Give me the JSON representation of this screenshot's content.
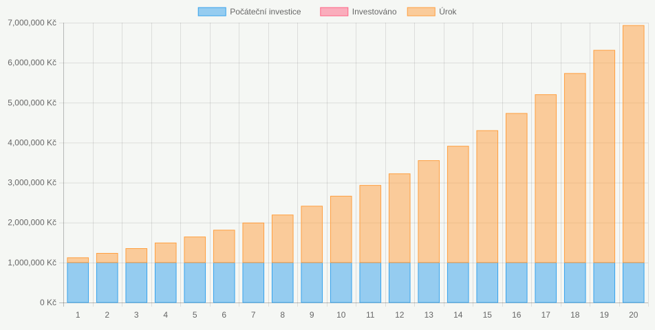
{
  "chart_data": {
    "type": "bar",
    "stacked": true,
    "categories": [
      "1",
      "2",
      "3",
      "4",
      "5",
      "6",
      "7",
      "8",
      "9",
      "10",
      "11",
      "12",
      "13",
      "14",
      "15",
      "16",
      "17",
      "18",
      "19",
      "20"
    ],
    "series": [
      {
        "name": "Počáteční investice",
        "color": "#36a2eb",
        "values": [
          1000000,
          1000000,
          1000000,
          1000000,
          1000000,
          1000000,
          1000000,
          1000000,
          1000000,
          1000000,
          1000000,
          1000000,
          1000000,
          1000000,
          1000000,
          1000000,
          1000000,
          1000000,
          1000000,
          1000000
        ]
      },
      {
        "name": "Investováno",
        "color": "#ff6384",
        "values": [
          0,
          0,
          0,
          0,
          0,
          0,
          0,
          0,
          0,
          0,
          0,
          0,
          0,
          0,
          0,
          0,
          0,
          0,
          0,
          0
        ]
      },
      {
        "name": "Úrok",
        "color": "#ff9f40",
        "values": [
          120000,
          230000,
          350000,
          490000,
          640000,
          810000,
          990000,
          1190000,
          1410000,
          1660000,
          1930000,
          2220000,
          2550000,
          2910000,
          3300000,
          3730000,
          4200000,
          4730000,
          5310000,
          5930000
        ]
      }
    ],
    "ylim": [
      0,
      7000000
    ],
    "yticks": [
      0,
      1000000,
      2000000,
      3000000,
      4000000,
      5000000,
      6000000,
      7000000
    ],
    "ytick_labels": [
      "0 Kč",
      "1,000,000 Kč",
      "2,000,000 Kč",
      "3,000,000 Kč",
      "4,000,000 Kč",
      "5,000,000 Kč",
      "6,000,000 Kč",
      "7,000,000 Kč"
    ],
    "grid": true,
    "legend_position": "top-center"
  }
}
